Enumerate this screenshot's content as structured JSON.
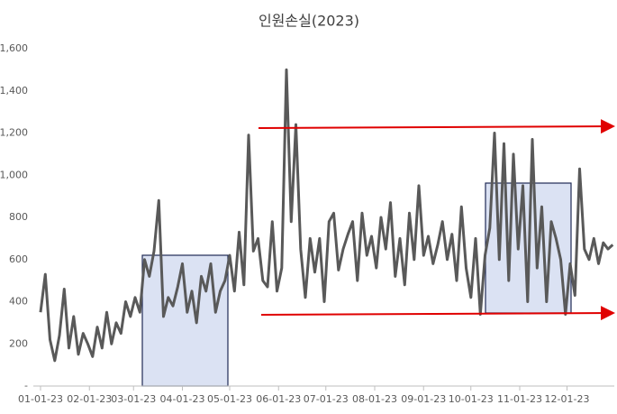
{
  "chart_data": {
    "type": "line",
    "title": "인원손실(2023)",
    "x": [
      "01-01-23",
      "01-04-23",
      "01-07-23",
      "01-10-23",
      "01-13-23",
      "01-16-23",
      "01-19-23",
      "01-22-23",
      "01-25-23",
      "01-28-23",
      "01-31-23",
      "02-03-23",
      "02-06-23",
      "02-09-23",
      "02-12-23",
      "02-15-23",
      "02-18-23",
      "02-21-23",
      "02-24-23",
      "02-27-23",
      "03-02-23",
      "03-05-23",
      "03-08-23",
      "03-11-23",
      "03-14-23",
      "03-17-23",
      "03-20-23",
      "03-23-23",
      "03-26-23",
      "03-29-23",
      "04-01-23",
      "04-04-23",
      "04-07-23",
      "04-10-23",
      "04-13-23",
      "04-16-23",
      "04-19-23",
      "04-22-23",
      "04-25-23",
      "04-28-23",
      "05-01-23",
      "05-04-23",
      "05-07-23",
      "05-10-23",
      "05-13-23",
      "05-16-23",
      "05-19-23",
      "05-22-23",
      "05-25-23",
      "05-28-23",
      "05-31-23",
      "06-03-23",
      "06-06-23",
      "06-09-23",
      "06-12-23",
      "06-15-23",
      "06-18-23",
      "06-21-23",
      "06-24-23",
      "06-27-23",
      "06-30-23",
      "07-03-23",
      "07-06-23",
      "07-09-23",
      "07-12-23",
      "07-15-23",
      "07-18-23",
      "07-21-23",
      "07-24-23",
      "07-27-23",
      "07-30-23",
      "08-02-23",
      "08-05-23",
      "08-08-23",
      "08-11-23",
      "08-14-23",
      "08-17-23",
      "08-20-23",
      "08-23-23",
      "08-26-23",
      "08-29-23",
      "09-01-23",
      "09-04-23",
      "09-07-23",
      "09-10-23",
      "09-13-23",
      "09-16-23",
      "09-19-23",
      "09-22-23",
      "09-25-23",
      "09-28-23",
      "10-01-23",
      "10-04-23",
      "10-07-23",
      "10-10-23",
      "10-13-23",
      "10-16-23",
      "10-19-23",
      "10-22-23",
      "10-25-23",
      "10-28-23",
      "10-31-23",
      "11-03-23",
      "11-06-23",
      "11-09-23",
      "11-12-23",
      "11-15-23",
      "11-18-23",
      "11-21-23",
      "11-24-23",
      "11-27-23",
      "11-30-23",
      "12-03-23",
      "12-06-23",
      "12-09-23",
      "12-12-23",
      "12-15-23",
      "12-18-23",
      "12-21-23",
      "12-24-23",
      "12-27-23",
      "12-30-23"
    ],
    "series": [
      {
        "color": "#595959",
        "values": [
          350,
          530,
          220,
          120,
          240,
          460,
          180,
          330,
          150,
          250,
          200,
          140,
          280,
          180,
          350,
          200,
          300,
          250,
          400,
          330,
          420,
          350,
          600,
          520,
          640,
          880,
          330,
          420,
          380,
          470,
          580,
          350,
          450,
          300,
          520,
          450,
          580,
          350,
          450,
          500,
          620,
          450,
          730,
          480,
          1190,
          640,
          700,
          500,
          470,
          780,
          450,
          560,
          1500,
          780,
          1240,
          650,
          420,
          700,
          540,
          700,
          400,
          780,
          820,
          550,
          650,
          720,
          780,
          500,
          820,
          620,
          710,
          560,
          800,
          650,
          870,
          520,
          700,
          480,
          820,
          600,
          950,
          620,
          710,
          580,
          670,
          780,
          600,
          720,
          500,
          850,
          560,
          420,
          700,
          340,
          620,
          750,
          1200,
          600,
          1150,
          500,
          1100,
          650,
          950,
          400,
          1170,
          560,
          850,
          400,
          780,
          700,
          600,
          340,
          580,
          430,
          1030,
          650,
          600,
          700,
          580,
          680,
          650,
          670
        ]
      }
    ],
    "xlim": [
      "01-01-23",
      "12-31-23"
    ],
    "xticks": [
      "01-01-23",
      "02-01-23",
      "03-01-23",
      "04-01-23",
      "05-01-23",
      "06-01-23",
      "07-01-23",
      "08-01-23",
      "09-01-23",
      "10-01-23",
      "11-01-23",
      "12-01-23"
    ],
    "ylim": [
      0,
      1600
    ],
    "yticks": [
      {
        "value": 0,
        "label": "-"
      },
      {
        "value": 200,
        "label": "200"
      },
      {
        "value": 400,
        "label": "400"
      },
      {
        "value": 600,
        "label": "600"
      },
      {
        "value": 800,
        "label": "800"
      },
      {
        "value": 1000,
        "label": "1,000"
      },
      {
        "value": 1200,
        "label": "1,200"
      },
      {
        "value": 1400,
        "label": "1,400"
      },
      {
        "value": 1600,
        "label": "1,600"
      }
    ],
    "grid": false
  }
}
